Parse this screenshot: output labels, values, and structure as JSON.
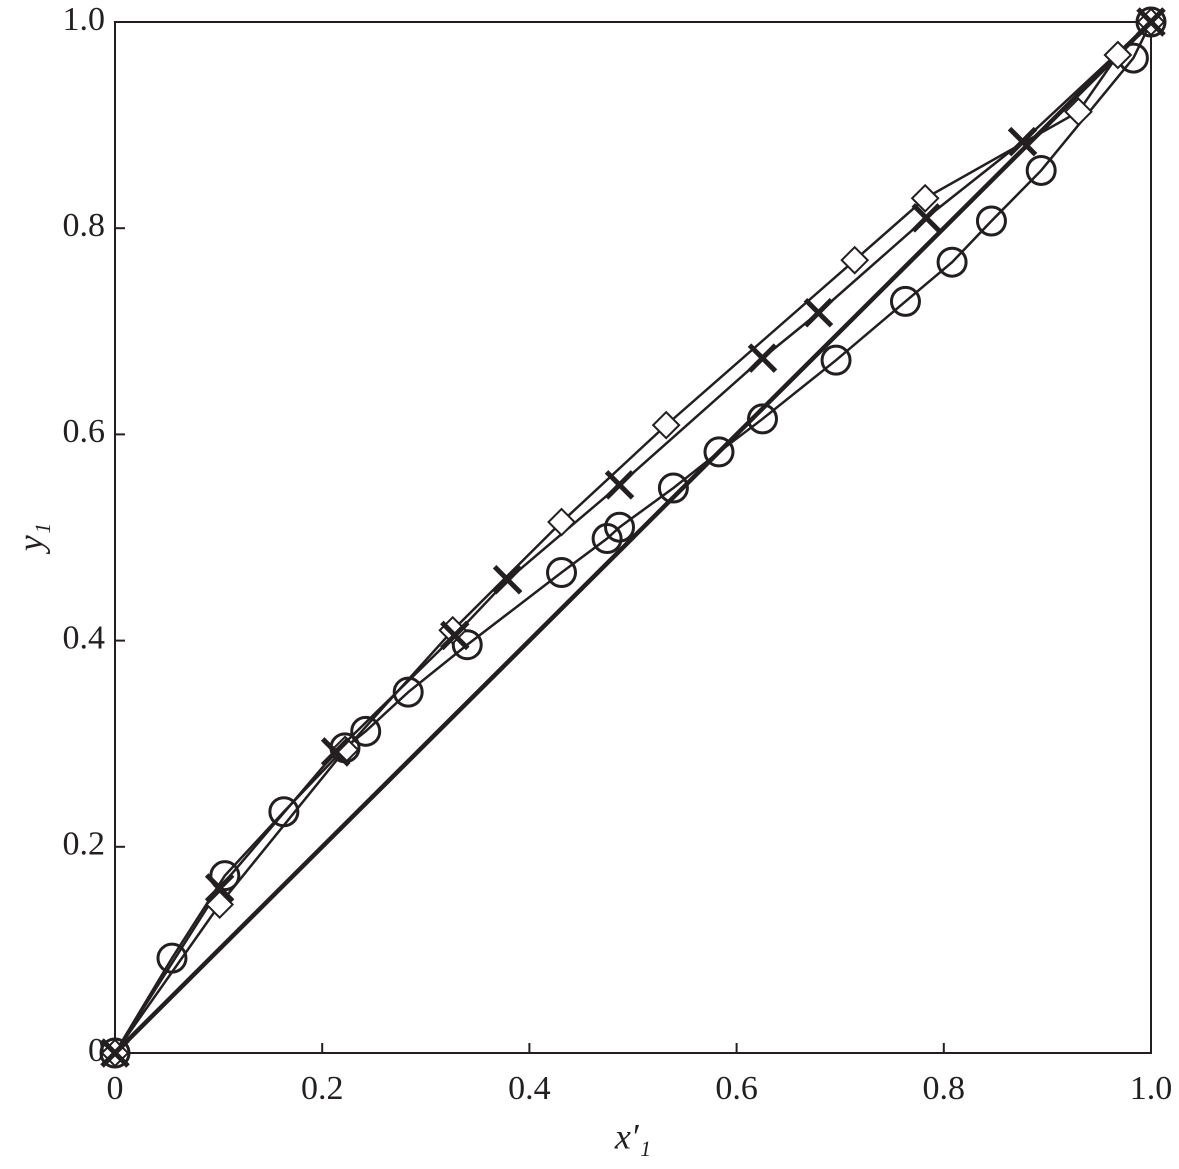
{
  "chart_data": {
    "type": "line",
    "xlabel": "x′₁",
    "ylabel": "y₁",
    "xlim": [
      0,
      1
    ],
    "ylim": [
      0,
      1
    ],
    "xticks": [
      0,
      0.2,
      0.4,
      0.6,
      0.8,
      {
        "value": 1,
        "label": "1.0"
      }
    ],
    "yticks": [
      0,
      0.2,
      0.4,
      0.6,
      0.8,
      {
        "value": 1,
        "label": "1.0"
      }
    ],
    "series": [
      {
        "marker": "circle",
        "color": "#231f20",
        "x": [
          0,
          0.055,
          0.106,
          0.163,
          0.222,
          0.242,
          0.283,
          0.34,
          0.431,
          0.475,
          0.487,
          0.539,
          0.583,
          0.625,
          0.696,
          0.763,
          0.808,
          0.846,
          0.894,
          0.983,
          1
        ],
        "values": [
          0,
          0.092,
          0.172,
          0.234,
          0.296,
          0.312,
          0.35,
          0.396,
          0.466,
          0.499,
          0.51,
          0.548,
          0.583,
          0.615,
          0.672,
          0.729,
          0.767,
          0.807,
          0.856,
          0.965,
          1
        ]
      },
      {
        "marker": "diamond",
        "color": "#231f20",
        "x": [
          0,
          0.101,
          0.222,
          0.326,
          0.431,
          0.532,
          0.714,
          0.782,
          0.93,
          0.968,
          1
        ],
        "values": [
          0,
          0.144,
          0.294,
          0.41,
          0.515,
          0.609,
          0.769,
          0.829,
          0.913,
          0.968,
          1
        ]
      },
      {
        "marker": "cross",
        "color": "#231f20",
        "x": [
          0,
          0.101,
          0.213,
          0.328,
          0.379,
          0.487,
          0.625,
          0.679,
          0.783,
          0.876,
          1
        ],
        "values": [
          0,
          0.16,
          0.292,
          0.405,
          0.459,
          0.551,
          0.674,
          0.718,
          0.81,
          0.884,
          1
        ]
      },
      {
        "marker": "none",
        "color": "#231f20",
        "width": 4.5,
        "x": [
          0,
          1
        ],
        "values": [
          0,
          1
        ]
      }
    ]
  }
}
